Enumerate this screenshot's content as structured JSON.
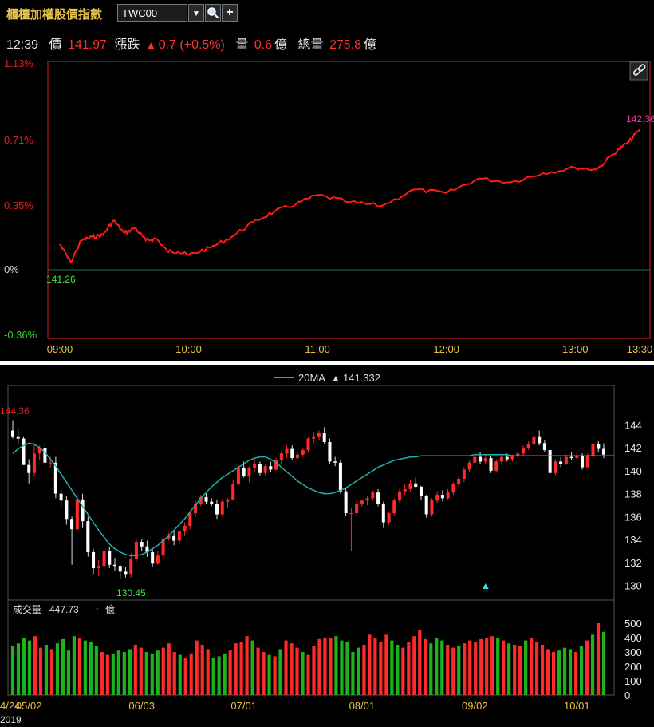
{
  "header": {
    "title": "櫃檯加權股價指數",
    "symbol": "TWC00",
    "dropdown_glyph": "▼",
    "search_icon": "search-icon",
    "add_glyph": "+"
  },
  "quote": {
    "time": "12:39",
    "price_label": "價",
    "price": "141.97",
    "change_label": "漲跌",
    "change_arrow": "▲",
    "change": "0.7 (+0.5%)",
    "volume_label": "量",
    "volume": "0.6",
    "volume_unit": "億",
    "total_label": "總量",
    "total": "275.8",
    "total_unit": "億"
  },
  "colors": {
    "up": "#ff2a2a",
    "down": "#1cb41c",
    "ma": "#1fb1b1",
    "intraday": "#ff1a1a",
    "frame": "#c01818"
  },
  "intraday_chart": {
    "link_icon": "link-icon",
    "ylabels": [
      "1.13%",
      "0.71%",
      "0.35%",
      "0%",
      "-0.36%"
    ],
    "xlabels": [
      "09:00",
      "10:00",
      "11:00",
      "12:00",
      "13:00",
      "13:30"
    ],
    "base_label": "141.26",
    "last_label": "142.36"
  },
  "chart_data": [
    {
      "type": "line",
      "title": "",
      "xlabel": "",
      "ylabel": "",
      "ylim": [
        -0.36,
        1.13
      ],
      "x": [
        "09:00",
        "09:05",
        "09:10",
        "09:15",
        "09:20",
        "09:25",
        "09:30",
        "09:35",
        "09:40",
        "09:45",
        "09:50",
        "09:55",
        "10:00",
        "10:10",
        "10:20",
        "10:30",
        "10:40",
        "10:50",
        "11:00",
        "11:15",
        "11:30",
        "11:45",
        "12:00",
        "12:15",
        "12:30",
        "12:45",
        "13:00",
        "13:10",
        "13:20",
        "13:25",
        "13:30"
      ],
      "series": [
        {
          "values": [
            0.14,
            0.04,
            0.16,
            0.18,
            0.19,
            0.27,
            0.2,
            0.23,
            0.16,
            0.17,
            0.1,
            0.1,
            0.08,
            0.12,
            0.18,
            0.26,
            0.32,
            0.36,
            0.41,
            0.37,
            0.35,
            0.44,
            0.42,
            0.5,
            0.48,
            0.53,
            0.56,
            0.55,
            0.66,
            0.7,
            0.77
          ]
        }
      ]
    },
    {
      "type": "candlestick",
      "ma_label": "20MA",
      "ma_arrow": "▲",
      "ma_value": "141.332",
      "ylim": [
        129,
        145
      ],
      "yticks": [
        130,
        132,
        134,
        136,
        138,
        140,
        142,
        144
      ],
      "high_label": "144.36",
      "low_label": "130.45",
      "xlabels": [
        {
          "label": "4/24",
          "index": 0
        },
        {
          "label": "05/02",
          "index": 3
        },
        {
          "label": "06/03",
          "index": 24
        },
        {
          "label": "07/01",
          "index": 43
        },
        {
          "label": "08/01",
          "index": 65
        },
        {
          "label": "09/02",
          "index": 86
        },
        {
          "label": "10/01",
          "index": 105
        }
      ],
      "year_label": "2019",
      "candles": [
        [
          143.5,
          144.4,
          142.8,
          143.0
        ],
        [
          143.0,
          143.6,
          142.3,
          142.8
        ],
        [
          142.8,
          143.0,
          140.5,
          140.5
        ],
        [
          140.5,
          141.0,
          138.9,
          139.8
        ],
        [
          139.8,
          142.4,
          139.5,
          141.5
        ],
        [
          141.5,
          142.2,
          140.9,
          142.0
        ],
        [
          142.0,
          142.5,
          140.5,
          140.7
        ],
        [
          140.7,
          141.2,
          140.2,
          140.7
        ],
        [
          140.7,
          141.2,
          137.6,
          138.0
        ],
        [
          138.0,
          138.4,
          136.8,
          137.4
        ],
        [
          137.4,
          137.8,
          135.3,
          135.8
        ],
        [
          135.8,
          136.0,
          131.8,
          134.9
        ],
        [
          134.9,
          138.0,
          134.7,
          137.5
        ],
        [
          137.5,
          138.0,
          135.0,
          135.6
        ],
        [
          135.6,
          136.0,
          132.5,
          132.9
        ],
        [
          132.9,
          133.2,
          131.0,
          131.5
        ],
        [
          131.5,
          132.2,
          130.8,
          131.7
        ],
        [
          131.7,
          133.4,
          131.5,
          133.0
        ],
        [
          133.0,
          133.4,
          131.5,
          131.8
        ],
        [
          131.8,
          132.4,
          131.3,
          131.7
        ],
        [
          131.7,
          131.8,
          130.6,
          131.2
        ],
        [
          131.2,
          131.6,
          130.7,
          131.0
        ],
        [
          131.0,
          132.8,
          130.7,
          132.3
        ],
        [
          132.3,
          134.1,
          132.1,
          133.8
        ],
        [
          133.8,
          134.0,
          133.0,
          133.4
        ],
        [
          133.4,
          133.9,
          132.5,
          132.9
        ],
        [
          132.9,
          133.2,
          131.6,
          131.9
        ],
        [
          131.9,
          133.0,
          131.8,
          132.6
        ],
        [
          132.6,
          134.3,
          132.5,
          134.1
        ],
        [
          134.1,
          134.6,
          133.9,
          134.3
        ],
        [
          134.3,
          134.8,
          133.5,
          133.9
        ],
        [
          133.9,
          134.8,
          133.6,
          134.7
        ],
        [
          134.7,
          135.5,
          134.3,
          135.2
        ],
        [
          135.2,
          136.5,
          134.9,
          136.3
        ],
        [
          136.3,
          137.5,
          136.0,
          137.1
        ],
        [
          137.1,
          137.9,
          136.9,
          137.7
        ],
        [
          137.7,
          138.0,
          137.1,
          137.3
        ],
        [
          137.3,
          137.6,
          136.9,
          137.1
        ],
        [
          137.1,
          137.5,
          135.8,
          136.2
        ],
        [
          136.2,
          137.5,
          136.0,
          137.3
        ],
        [
          137.3,
          137.6,
          136.8,
          137.5
        ],
        [
          137.5,
          139.2,
          137.4,
          138.8
        ],
        [
          138.8,
          140.5,
          138.7,
          140.2
        ],
        [
          140.2,
          140.8,
          139.4,
          139.5
        ],
        [
          139.5,
          140.4,
          139.0,
          140.2
        ],
        [
          140.2,
          141.0,
          139.9,
          140.6
        ],
        [
          140.6,
          140.8,
          139.6,
          139.8
        ],
        [
          139.8,
          140.6,
          139.6,
          140.4
        ],
        [
          140.4,
          140.8,
          139.9,
          140.1
        ],
        [
          140.1,
          141.1,
          140.0,
          140.9
        ],
        [
          140.9,
          141.7,
          140.6,
          141.5
        ],
        [
          141.5,
          142.2,
          141.1,
          141.9
        ],
        [
          141.9,
          142.2,
          140.9,
          141.1
        ],
        [
          141.1,
          141.6,
          140.9,
          141.4
        ],
        [
          141.4,
          142.0,
          141.2,
          141.8
        ],
        [
          141.8,
          143.0,
          141.6,
          142.8
        ],
        [
          142.8,
          143.4,
          142.4,
          143.0
        ],
        [
          143.0,
          143.5,
          142.7,
          143.3
        ],
        [
          143.3,
          143.8,
          142.3,
          142.5
        ],
        [
          142.5,
          142.8,
          140.6,
          140.8
        ],
        [
          140.8,
          141.2,
          140.4,
          140.7
        ],
        [
          140.7,
          140.9,
          138.0,
          138.2
        ],
        [
          138.2,
          138.5,
          136.1,
          136.3
        ],
        [
          136.3,
          136.8,
          133.0,
          136.3
        ],
        [
          136.3,
          137.4,
          136.1,
          137.1
        ],
        [
          137.1,
          137.5,
          136.9,
          137.4
        ],
        [
          137.4,
          137.8,
          137.0,
          137.6
        ],
        [
          137.6,
          138.3,
          137.4,
          138.1
        ],
        [
          138.1,
          138.4,
          136.9,
          137.1
        ],
        [
          137.1,
          137.3,
          135.0,
          135.5
        ],
        [
          135.5,
          136.4,
          135.3,
          136.3
        ],
        [
          136.3,
          137.6,
          136.1,
          137.4
        ],
        [
          137.4,
          138.4,
          137.2,
          138.2
        ],
        [
          138.2,
          138.8,
          137.9,
          138.4
        ],
        [
          138.4,
          139.2,
          138.2,
          138.9
        ],
        [
          138.9,
          139.4,
          138.5,
          138.6
        ],
        [
          138.6,
          138.7,
          137.5,
          137.8
        ],
        [
          137.8,
          137.9,
          135.9,
          136.2
        ],
        [
          136.2,
          137.6,
          136.0,
          137.4
        ],
        [
          137.4,
          138.2,
          137.2,
          137.9
        ],
        [
          137.9,
          138.3,
          137.3,
          137.6
        ],
        [
          137.6,
          138.4,
          137.5,
          138.1
        ],
        [
          138.1,
          139.0,
          137.9,
          138.8
        ],
        [
          138.8,
          139.5,
          138.6,
          139.3
        ],
        [
          139.3,
          140.3,
          139.0,
          140.1
        ],
        [
          140.1,
          140.9,
          139.9,
          140.7
        ],
        [
          140.7,
          141.5,
          140.4,
          141.2
        ],
        [
          141.2,
          141.6,
          140.6,
          140.8
        ],
        [
          140.8,
          141.4,
          140.6,
          141.1
        ],
        [
          141.1,
          141.3,
          139.8,
          140.0
        ],
        [
          140.0,
          141.0,
          139.9,
          140.8
        ],
        [
          140.8,
          141.4,
          140.5,
          141.2
        ],
        [
          141.2,
          141.5,
          140.8,
          141.0
        ],
        [
          141.0,
          141.4,
          140.8,
          141.3
        ],
        [
          141.3,
          141.7,
          141.1,
          141.5
        ],
        [
          141.5,
          142.2,
          141.3,
          142.0
        ],
        [
          142.0,
          142.6,
          141.8,
          142.3
        ],
        [
          142.3,
          143.2,
          142.1,
          143.0
        ],
        [
          143.0,
          143.5,
          142.2,
          142.4
        ],
        [
          142.4,
          142.7,
          141.6,
          141.8
        ],
        [
          141.8,
          141.9,
          139.6,
          139.8
        ],
        [
          139.8,
          141.0,
          139.6,
          140.8
        ],
        [
          140.8,
          141.2,
          140.3,
          140.6
        ],
        [
          140.6,
          141.4,
          140.5,
          141.2
        ],
        [
          141.2,
          141.6,
          140.9,
          141.1
        ],
        [
          141.1,
          141.6,
          140.8,
          141.3
        ],
        [
          141.3,
          141.5,
          140.1,
          140.3
        ],
        [
          140.3,
          141.5,
          140.2,
          141.3
        ],
        [
          141.3,
          142.6,
          141.1,
          142.3
        ],
        [
          142.3,
          142.6,
          141.6,
          141.9
        ],
        [
          141.9,
          142.4,
          141.1,
          141.4
        ]
      ],
      "ma20": [
        141.5,
        141.9,
        142.2,
        142.4,
        142.3,
        142.0,
        141.6,
        141.0,
        140.4,
        139.7,
        139.0,
        138.3,
        137.6,
        136.9,
        136.2,
        135.5,
        134.8,
        134.2,
        133.6,
        133.2,
        132.9,
        132.7,
        132.6,
        132.6,
        132.7,
        132.9,
        133.2,
        133.5,
        133.9,
        134.3,
        134.8,
        135.3,
        135.8,
        136.4,
        137.0,
        137.6,
        138.1,
        138.6,
        139.0,
        139.4,
        139.7,
        140.0,
        140.3,
        140.6,
        140.9,
        141.1,
        141.2,
        141.2,
        141.0,
        140.7,
        140.3,
        139.9,
        139.5,
        139.1,
        138.8,
        138.5,
        138.3,
        138.1,
        138.0,
        138.0,
        138.1,
        138.3,
        138.5,
        138.8,
        139.1,
        139.4,
        139.7,
        140.0,
        140.3,
        140.5,
        140.7,
        140.9,
        141.0,
        141.1,
        141.2,
        141.2,
        141.3,
        141.3,
        141.3,
        141.3,
        141.3,
        141.3,
        141.3,
        141.3,
        141.3,
        141.3,
        141.4,
        141.4,
        141.4,
        141.4,
        141.4,
        141.4,
        141.4,
        141.3,
        141.3,
        141.3,
        141.3,
        141.3,
        141.3,
        141.3,
        141.3,
        141.3,
        141.3,
        141.3,
        141.3,
        141.3,
        141.3,
        141.3,
        141.3,
        141.3,
        141.3,
        141.3,
        141.3
      ],
      "marker_index": 88
    },
    {
      "type": "bar",
      "label": "成交量",
      "value": "447.73",
      "arrow": "↑",
      "unit": "億",
      "ylim": [
        0,
        550
      ],
      "yticks": [
        0,
        100,
        200,
        300,
        400,
        500
      ],
      "values": [
        340,
        360,
        400,
        380,
        410,
        330,
        350,
        320,
        360,
        390,
        310,
        410,
        400,
        380,
        370,
        340,
        300,
        280,
        290,
        310,
        300,
        320,
        350,
        330,
        300,
        290,
        310,
        330,
        360,
        300,
        280,
        260,
        290,
        380,
        350,
        320,
        260,
        270,
        290,
        310,
        360,
        370,
        410,
        380,
        330,
        300,
        280,
        270,
        320,
        380,
        360,
        330,
        300,
        280,
        340,
        390,
        400,
        400,
        410,
        380,
        370,
        300,
        330,
        350,
        420,
        400,
        370,
        420,
        380,
        350,
        330,
        370,
        410,
        450,
        390,
        360,
        400,
        380,
        350,
        330,
        340,
        360,
        380,
        370,
        390,
        400,
        410,
        400,
        380,
        360,
        350,
        340,
        380,
        400,
        370,
        350,
        320,
        300,
        310,
        330,
        320,
        300,
        340,
        380,
        420,
        500,
        440
      ]
    }
  ]
}
